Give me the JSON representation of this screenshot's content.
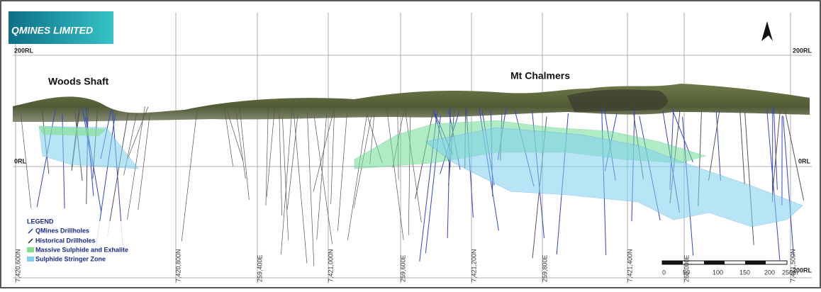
{
  "logo": {
    "title": "QMINES LIMITED"
  },
  "levels": {
    "top_left": "200RL",
    "top_right": "200RL",
    "mid_left": "0RL",
    "mid_right": "0RL",
    "bottom_right": "200RL"
  },
  "places": [
    "Woods Shaft",
    "Mt Chalmers"
  ],
  "grid_labels": [
    "7,420,600N",
    "7,420,800N",
    "259,400E",
    "7,421,000N",
    "259,600E",
    "7,421,200N",
    "259,800E",
    "7,421,400N",
    "260,000E",
    "7,421,500N"
  ],
  "legend": {
    "title": "LEGEND",
    "items": [
      "QMines Drillholes",
      "Historical Drillholes",
      "Massive Sulphide and Exhalite",
      "Sulphide Stringer Zone"
    ]
  },
  "scale": [
    "0",
    "50",
    "100",
    "150",
    "200",
    "250m"
  ]
}
